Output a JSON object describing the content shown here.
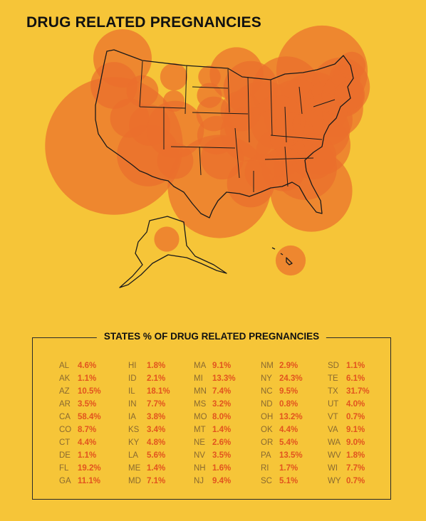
{
  "title": "DRUG RELATED PREGNANCIES",
  "chart_data": {
    "type": "table",
    "title": "STATES % OF DRUG RELATED PREGNANCIES",
    "colors": {
      "background": "#f6c538",
      "bubble": "#ea6f2d",
      "text_value": "#e2541e",
      "text_abbr": "#8a6a30"
    },
    "columns": [
      [
        {
          "state": "AL",
          "value": "4.6%"
        },
        {
          "state": "AK",
          "value": "1.1%"
        },
        {
          "state": "AZ",
          "value": "10.5%"
        },
        {
          "state": "AR",
          "value": "3.5%"
        },
        {
          "state": "CA",
          "value": "58.4%"
        },
        {
          "state": "CO",
          "value": "8.7%"
        },
        {
          "state": "CT",
          "value": "4.4%"
        },
        {
          "state": "DE",
          "value": "1.1%"
        },
        {
          "state": "FL",
          "value": "19.2%"
        },
        {
          "state": "GA",
          "value": "11.1%"
        }
      ],
      [
        {
          "state": "HI",
          "value": "1.8%"
        },
        {
          "state": "ID",
          "value": "2.1%"
        },
        {
          "state": "IL",
          "value": "18.1%"
        },
        {
          "state": "IN",
          "value": "7.7%"
        },
        {
          "state": "IA",
          "value": "3.8%"
        },
        {
          "state": "KS",
          "value": "3.4%"
        },
        {
          "state": "KY",
          "value": "4.8%"
        },
        {
          "state": "LA",
          "value": "5.6%"
        },
        {
          "state": "ME",
          "value": "1.4%"
        },
        {
          "state": "MD",
          "value": "7.1%"
        }
      ],
      [
        {
          "state": "MA",
          "value": "9.1%"
        },
        {
          "state": "MI",
          "value": "13.3%"
        },
        {
          "state": "MN",
          "value": "7.4%"
        },
        {
          "state": "MS",
          "value": "3.2%"
        },
        {
          "state": "MO",
          "value": "8.0%"
        },
        {
          "state": "MT",
          "value": "1.4%"
        },
        {
          "state": "NE",
          "value": "2.6%"
        },
        {
          "state": "NV",
          "value": "3.5%"
        },
        {
          "state": "NH",
          "value": "1.6%"
        },
        {
          "state": "NJ",
          "value": "9.4%"
        }
      ],
      [
        {
          "state": "NM",
          "value": "2.9%"
        },
        {
          "state": "NY",
          "value": "24.3%"
        },
        {
          "state": "NC",
          "value": "9.5%"
        },
        {
          "state": "ND",
          "value": "0.8%"
        },
        {
          "state": "OH",
          "value": "13.2%"
        },
        {
          "state": "OK",
          "value": "4.4%"
        },
        {
          "state": "OR",
          "value": "5.4%"
        },
        {
          "state": "PA",
          "value": "13.5%"
        },
        {
          "state": "RI",
          "value": "1.7%"
        },
        {
          "state": "SC",
          "value": "5.1%"
        }
      ],
      [
        {
          "state": "SD",
          "value": "1.1%"
        },
        {
          "state": "TE",
          "value": "6.1%"
        },
        {
          "state": "TX",
          "value": "31.7%"
        },
        {
          "state": "UT",
          "value": "4.0%"
        },
        {
          "state": "VT",
          "value": "0.7%"
        },
        {
          "state": "VA",
          "value": "9.1%"
        },
        {
          "state": "WA",
          "value": "9.0%"
        },
        {
          "state": "WV",
          "value": "1.8%"
        },
        {
          "state": "WI",
          "value": "7.7%"
        },
        {
          "state": "WY",
          "value": "0.7%"
        }
      ]
    ]
  }
}
